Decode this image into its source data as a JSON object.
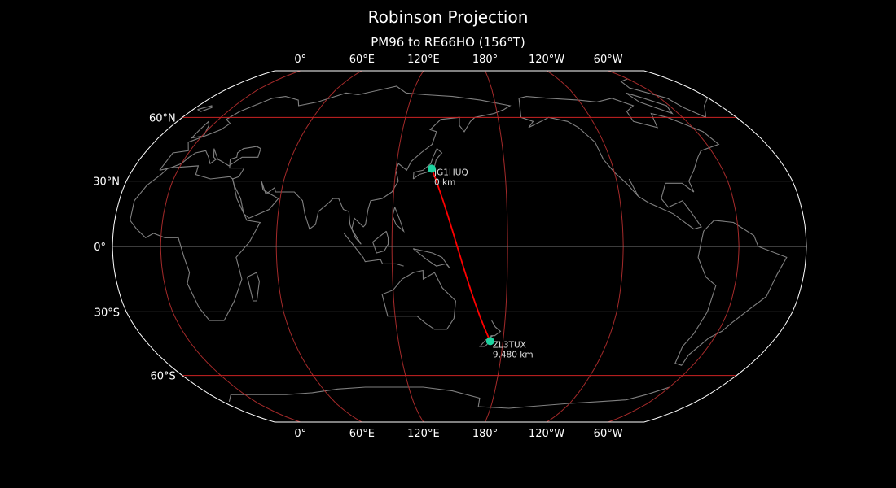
{
  "title": "Robinson Projection",
  "subtitle": "PM96 to RE66HO (156°T)",
  "map": {
    "projection": "Robinson",
    "central_longitude": 155,
    "longitude_ticks": [
      {
        "lon": 0,
        "label": "0°"
      },
      {
        "lon": 60,
        "label": "60°E"
      },
      {
        "lon": 120,
        "label": "120°E"
      },
      {
        "lon": 180,
        "label": "180°"
      },
      {
        "lon": -120,
        "label": "120°W"
      },
      {
        "lon": -60,
        "label": "60°W"
      }
    ],
    "latitude_ticks": [
      {
        "lat": 60,
        "label": "60°N"
      },
      {
        "lat": 30,
        "label": "30°N"
      },
      {
        "lat": 0,
        "label": "0°"
      },
      {
        "lat": -30,
        "label": "30°S"
      },
      {
        "lat": -60,
        "label": "60°S"
      }
    ],
    "colors": {
      "background": "#000000",
      "coastline": "#808080",
      "meridian": "#a52a2a",
      "parallel_60": "#cc2222",
      "parallel_minor": "#777777",
      "path": "#ff0000",
      "marker": "#1dd3a0",
      "border": "#ffffff"
    },
    "points": [
      {
        "callsign": "JG1HUQ",
        "distance": "0 km",
        "lat": 35.7,
        "lon": 139.7
      },
      {
        "callsign": "ZL3TUX",
        "distance": "9,480 km",
        "lat": -43.5,
        "lon": 172.7
      }
    ]
  }
}
